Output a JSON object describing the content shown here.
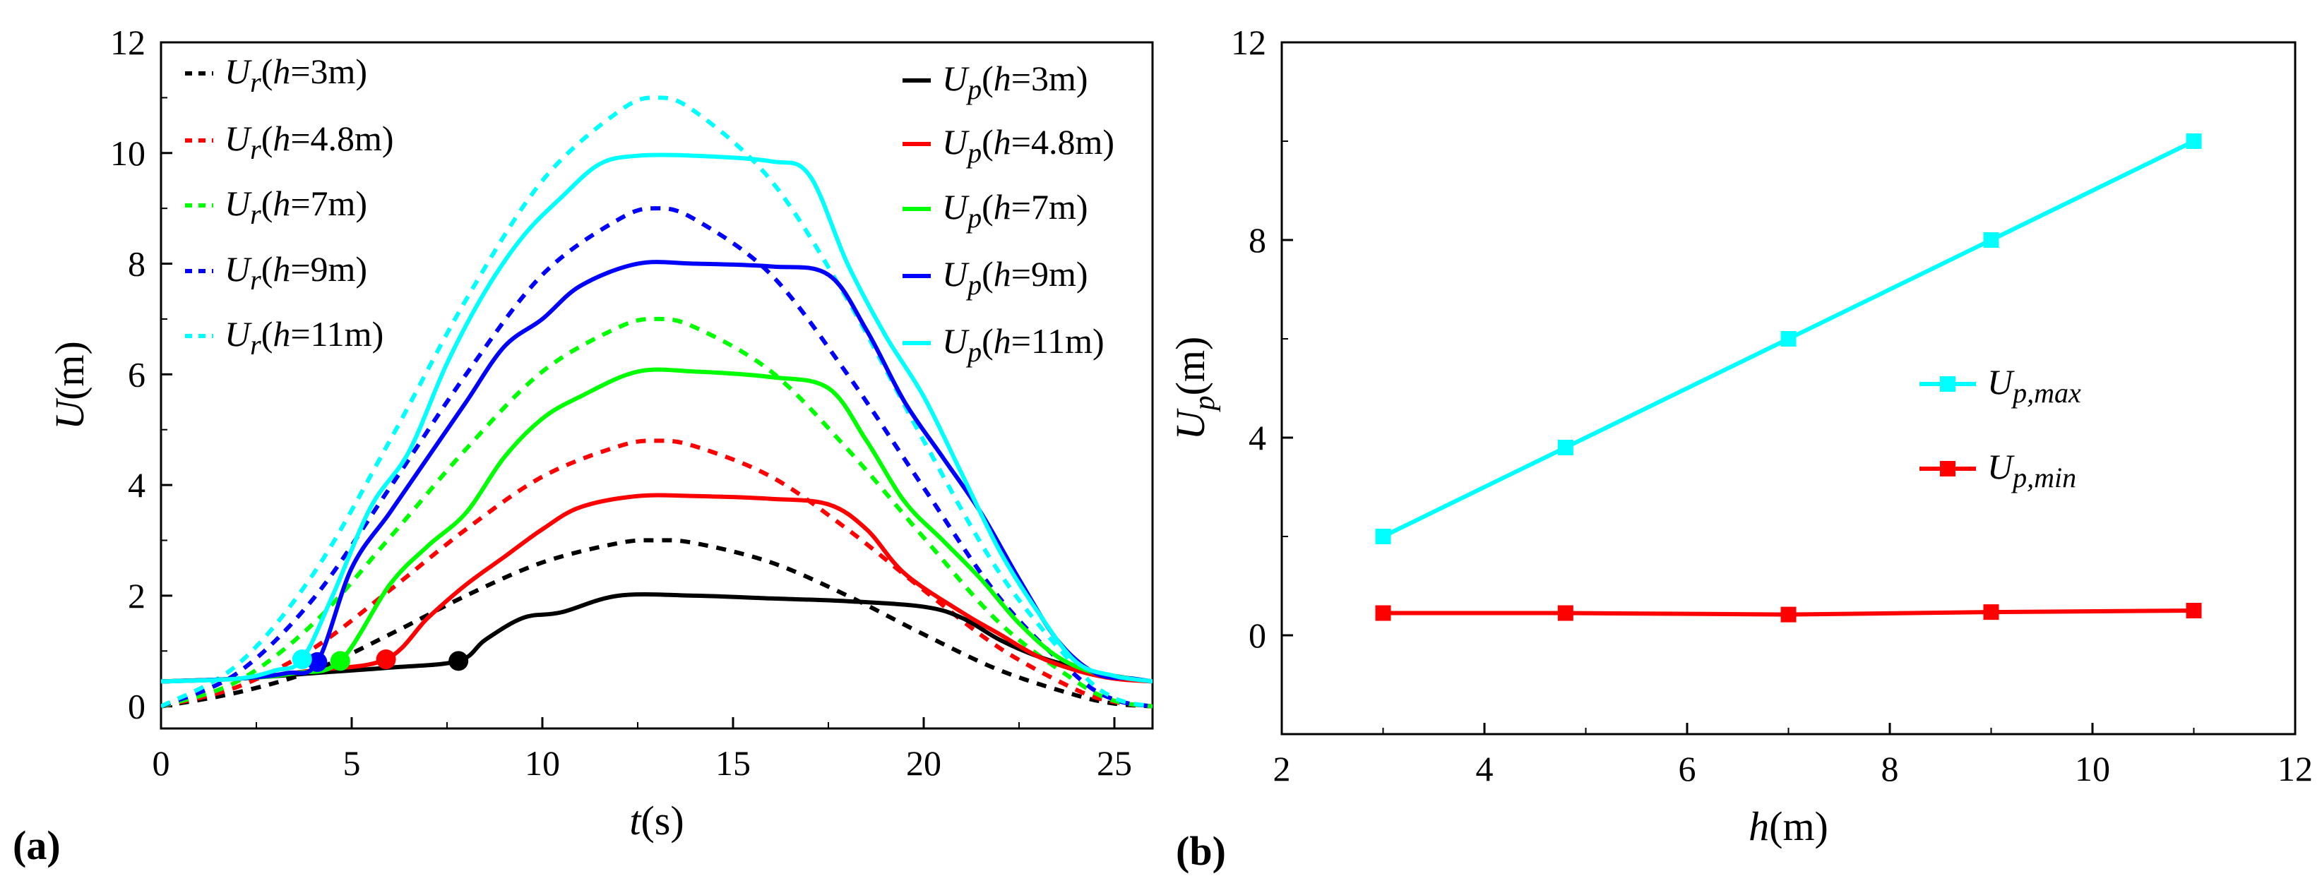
{
  "chart_data": [
    {
      "type": "line",
      "panel_label": "(a)",
      "xlabel": {
        "var": "t",
        "unit": "(s)"
      },
      "ylabel": {
        "var": "U",
        "unit": "(m)"
      },
      "xlim": [
        0,
        26
      ],
      "ylim": [
        -0.4,
        12
      ],
      "xticks": [
        0,
        5,
        10,
        15,
        20,
        25
      ],
      "yticks": [
        0,
        2,
        4,
        6,
        8,
        10,
        12
      ],
      "grid": false,
      "legend_placement": "top-left and top-right, two columns",
      "series": [
        {
          "name": "Ur(h=3m)",
          "sym": "U",
          "sub": "r",
          "h": "3m",
          "style": "dashed",
          "color": "#000000",
          "x": [
            0,
            2,
            4,
            6,
            8,
            10,
            12,
            13,
            14,
            16,
            18,
            20,
            22,
            24,
            25,
            26
          ],
          "y": [
            0,
            0.25,
            0.65,
            1.3,
            2.0,
            2.6,
            2.95,
            3.0,
            2.95,
            2.6,
            2.0,
            1.3,
            0.65,
            0.2,
            0.05,
            0
          ]
        },
        {
          "name": "Ur(h=4.8m)",
          "sym": "U",
          "sub": "r",
          "h": "4.8m",
          "style": "dashed",
          "color": "#ff0000",
          "x": [
            0,
            2,
            4,
            6,
            8,
            10,
            12,
            13,
            14,
            16,
            18,
            20,
            22,
            24,
            25,
            26
          ],
          "y": [
            0,
            0.35,
            1.05,
            2.1,
            3.2,
            4.15,
            4.7,
            4.8,
            4.7,
            4.15,
            3.2,
            2.1,
            1.05,
            0.3,
            0.08,
            0
          ]
        },
        {
          "name": "Ur(h=7m)",
          "sym": "U",
          "sub": "r",
          "h": "7m",
          "style": "dashed",
          "color": "#00ff00",
          "x": [
            0,
            2,
            4,
            6,
            8,
            10,
            12,
            13,
            14,
            16,
            18,
            20,
            22,
            24,
            25,
            26
          ],
          "y": [
            0,
            0.45,
            1.5,
            3.05,
            4.65,
            6.05,
            6.85,
            7.0,
            6.85,
            6.05,
            4.65,
            3.05,
            1.5,
            0.45,
            0.1,
            0
          ]
        },
        {
          "name": "Ur(h=9m)",
          "sym": "U",
          "sub": "r",
          "h": "9m",
          "style": "dashed",
          "color": "#0000ff",
          "x": [
            0,
            2,
            4,
            6,
            8,
            10,
            12,
            13,
            14,
            16,
            18,
            20,
            22,
            24,
            25,
            26
          ],
          "y": [
            0,
            0.6,
            1.95,
            3.95,
            6.0,
            7.8,
            8.8,
            9.0,
            8.8,
            7.8,
            6.0,
            3.95,
            1.95,
            0.55,
            0.12,
            0
          ]
        },
        {
          "name": "Ur(h=11m)",
          "sym": "U",
          "sub": "r",
          "h": "11m",
          "style": "dashed",
          "color": "#00ffff",
          "x": [
            0,
            2,
            4,
            6,
            8,
            10,
            12,
            13,
            14,
            16,
            18,
            20,
            22,
            24,
            25,
            26
          ],
          "y": [
            0,
            0.75,
            2.4,
            4.8,
            7.35,
            9.5,
            10.75,
            11.0,
            10.75,
            9.5,
            7.35,
            4.8,
            2.4,
            0.7,
            0.15,
            0
          ]
        },
        {
          "name": "Up(h=3m)",
          "sym": "U",
          "sub": "p",
          "h": "3m",
          "style": "solid",
          "color": "#000000",
          "x": [
            0,
            2,
            4,
            6,
            7.8,
            8.5,
            9.5,
            10.5,
            12,
            14,
            16,
            18,
            20,
            21,
            22,
            23,
            24,
            25,
            26
          ],
          "y": [
            0.45,
            0.5,
            0.6,
            0.7,
            0.82,
            1.2,
            1.6,
            1.7,
            2.0,
            2.0,
            1.95,
            1.9,
            1.8,
            1.6,
            1.2,
            0.9,
            0.7,
            0.55,
            0.45
          ]
        },
        {
          "name": "Up(h=4.8m)",
          "sym": "U",
          "sub": "p",
          "h": "4.8m",
          "style": "solid",
          "color": "#ff0000",
          "x": [
            0,
            2,
            4,
            5.9,
            7,
            8,
            9,
            10,
            11,
            12.5,
            14,
            16,
            17.5,
            18.5,
            19.5,
            21,
            22,
            23,
            24,
            25,
            26
          ],
          "y": [
            0.45,
            0.5,
            0.65,
            0.85,
            1.6,
            2.2,
            2.7,
            3.2,
            3.6,
            3.8,
            3.8,
            3.75,
            3.65,
            3.2,
            2.4,
            1.7,
            1.3,
            0.9,
            0.65,
            0.5,
            0.45
          ]
        },
        {
          "name": "Up(h=7m)",
          "sym": "U",
          "sub": "p",
          "h": "7m",
          "style": "solid",
          "color": "#00ff00",
          "x": [
            0,
            2,
            3.5,
            4.7,
            6,
            7,
            8,
            9,
            10,
            11,
            12.5,
            14,
            16,
            17.5,
            18.5,
            19.5,
            20.5,
            21.5,
            22.5,
            23.5,
            24.5,
            25.5,
            26
          ],
          "y": [
            0.45,
            0.5,
            0.6,
            0.82,
            2.2,
            2.9,
            3.5,
            4.5,
            5.2,
            5.6,
            6.05,
            6.05,
            5.95,
            5.75,
            4.8,
            3.7,
            3.0,
            2.3,
            1.5,
            0.9,
            0.6,
            0.5,
            0.45
          ]
        },
        {
          "name": "Up(h=9m)",
          "sym": "U",
          "sub": "p",
          "h": "9m",
          "style": "solid",
          "color": "#0000ff",
          "x": [
            0,
            2,
            3.3,
            4.1,
            5,
            6,
            7,
            8,
            9,
            10,
            11,
            12.5,
            14,
            16,
            17.5,
            18.5,
            19.5,
            20.5,
            21.5,
            22.5,
            23.5,
            24.5,
            25.5,
            26
          ],
          "y": [
            0.45,
            0.5,
            0.6,
            0.8,
            2.5,
            3.5,
            4.5,
            5.5,
            6.5,
            7.0,
            7.6,
            8.0,
            8.0,
            7.95,
            7.8,
            6.8,
            5.5,
            4.5,
            3.5,
            2.3,
            1.2,
            0.6,
            0.5,
            0.45
          ]
        },
        {
          "name": "Up(h=11m)",
          "sym": "U",
          "sub": "p",
          "h": "11m",
          "style": "solid",
          "color": "#00ffff",
          "x": [
            0,
            2,
            3,
            3.7,
            4.5,
            5.5,
            6.5,
            7.5,
            8.5,
            9.5,
            10.5,
            11.5,
            12.5,
            14,
            16,
            17,
            18,
            19,
            20,
            21,
            22,
            23,
            24,
            25,
            26
          ],
          "y": [
            0.45,
            0.5,
            0.65,
            0.85,
            2.0,
            3.6,
            4.6,
            6.2,
            7.5,
            8.5,
            9.2,
            9.8,
            9.95,
            9.95,
            9.85,
            9.6,
            8.0,
            6.7,
            5.6,
            4.2,
            2.8,
            1.7,
            0.8,
            0.55,
            0.45
          ]
        }
      ],
      "markers": [
        {
          "series": "Up(h=3m)",
          "x": 7.8,
          "y": 0.82,
          "color": "#000000"
        },
        {
          "series": "Up(h=4.8m)",
          "x": 5.9,
          "y": 0.85,
          "color": "#ff0000"
        },
        {
          "series": "Up(h=7m)",
          "x": 4.7,
          "y": 0.82,
          "color": "#00ff00"
        },
        {
          "series": "Up(h=9m)",
          "x": 4.1,
          "y": 0.8,
          "color": "#0000ff"
        },
        {
          "series": "Up(h=11m)",
          "x": 3.7,
          "y": 0.85,
          "color": "#00ffff"
        }
      ]
    },
    {
      "type": "line",
      "panel_label": "(b)",
      "xlabel": {
        "var": "h",
        "unit": "(m)"
      },
      "ylabel": {
        "var": "U",
        "sub": "p",
        "unit": "(m)"
      },
      "xlim": [
        2,
        12
      ],
      "ylim": [
        -2,
        12
      ],
      "xticks": [
        2,
        4,
        6,
        8,
        10,
        12
      ],
      "yticks": [
        0,
        4,
        8,
        12
      ],
      "grid": false,
      "legend_placement": "center-right",
      "series": [
        {
          "name": "Up,max",
          "sym": "U",
          "sub": "p,max",
          "color": "#00ffff",
          "marker": "square",
          "x": [
            3,
            4.8,
            7,
            9,
            11
          ],
          "y": [
            2.0,
            3.8,
            6.0,
            8.0,
            10.0
          ]
        },
        {
          "name": "Up,min",
          "sym": "U",
          "sub": "p,min",
          "color": "#ff0000",
          "marker": "square",
          "x": [
            3,
            4.8,
            7,
            9,
            11
          ],
          "y": [
            0.45,
            0.45,
            0.42,
            0.47,
            0.5
          ]
        }
      ]
    }
  ]
}
